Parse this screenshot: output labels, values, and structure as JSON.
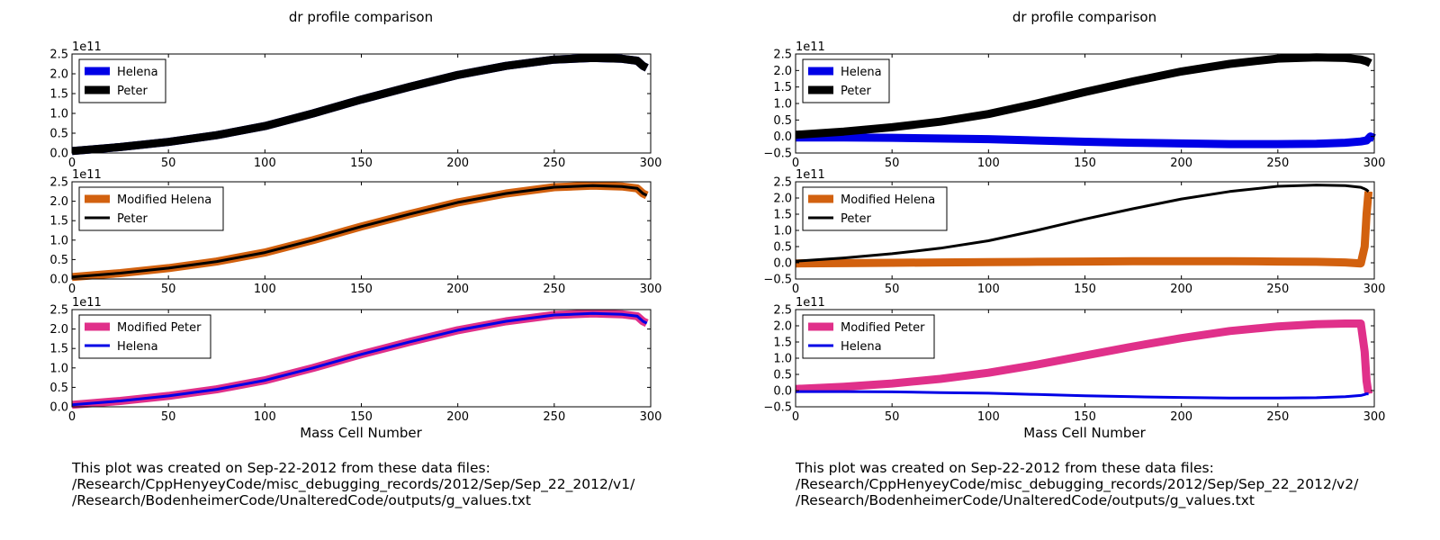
{
  "figures": [
    {
      "title": "dr profile comparison",
      "xlabel": "Mass Cell Number",
      "note": [
        "This plot was created on Sep-22-2012 from these data files:",
        "/Research/CppHenyeyCode/misc_debugging_records/2012/Sep/Sep_22_2012/v1/",
        "/Research/BodenheimerCode/UnalteredCode/outputs/g_values.txt"
      ]
    },
    {
      "title": "dr profile comparison",
      "xlabel": "Mass Cell Number",
      "note": [
        "This plot was created on Sep-22-2012 from these data files:",
        "/Research/CppHenyeyCode/misc_debugging_records/2012/Sep/Sep_22_2012/v2/",
        "/Research/BodenheimerCode/UnalteredCode/outputs/g_values.txt"
      ]
    }
  ],
  "colors": {
    "blue": "#0000e6",
    "black": "#000000",
    "orange": "#d2610f",
    "pink": "#e0308a"
  },
  "chart_data": [
    {
      "type": "line",
      "title": "dr profile comparison",
      "xlabel": "",
      "ylabel": "",
      "scale_label": "1e11",
      "xlim": [
        0,
        300
      ],
      "ylim": [
        0,
        2.5
      ],
      "xticks": [
        "0",
        "50",
        "100",
        "150",
        "200",
        "250",
        "300"
      ],
      "yticks": [
        "0.0",
        "0.5",
        "1.0",
        "1.5",
        "2.0",
        "2.5"
      ],
      "legend": "top-left",
      "x": [
        0,
        25,
        50,
        75,
        100,
        125,
        150,
        175,
        200,
        225,
        250,
        270,
        285,
        293,
        296,
        298
      ],
      "series": [
        {
          "name": "Helena",
          "style": "thick",
          "color": "#0000e6",
          "values": [
            0.05,
            0.15,
            0.28,
            0.45,
            0.68,
            1.0,
            1.35,
            1.67,
            1.97,
            2.2,
            2.36,
            2.4,
            2.38,
            2.33,
            2.2,
            2.15
          ]
        },
        {
          "name": "Peter",
          "style": "thick",
          "color": "#000000",
          "values": [
            0.05,
            0.15,
            0.28,
            0.45,
            0.68,
            1.0,
            1.35,
            1.67,
            1.97,
            2.2,
            2.36,
            2.4,
            2.38,
            2.33,
            2.2,
            2.15
          ]
        }
      ]
    },
    {
      "type": "line",
      "xlabel": "",
      "ylabel": "",
      "scale_label": "1e11",
      "xlim": [
        0,
        300
      ],
      "ylim": [
        0,
        2.5
      ],
      "xticks": [
        "0",
        "50",
        "100",
        "150",
        "200",
        "250",
        "300"
      ],
      "yticks": [
        "0.0",
        "0.5",
        "1.0",
        "1.5",
        "2.0",
        "2.5"
      ],
      "legend": "top-left",
      "x": [
        0,
        25,
        50,
        75,
        100,
        125,
        150,
        175,
        200,
        225,
        250,
        270,
        285,
        293,
        296,
        298
      ],
      "series": [
        {
          "name": "Modified Helena",
          "style": "thick",
          "color": "#d2610f",
          "values": [
            0.05,
            0.15,
            0.28,
            0.45,
            0.68,
            1.0,
            1.35,
            1.67,
            1.97,
            2.2,
            2.36,
            2.4,
            2.38,
            2.33,
            2.2,
            2.15
          ]
        },
        {
          "name": "Peter",
          "style": "thin",
          "color": "#000000",
          "values": [
            0.05,
            0.15,
            0.28,
            0.45,
            0.68,
            1.0,
            1.35,
            1.67,
            1.97,
            2.2,
            2.36,
            2.4,
            2.38,
            2.33,
            2.2,
            2.15
          ]
        }
      ]
    },
    {
      "type": "line",
      "xlabel": "Mass Cell Number",
      "ylabel": "",
      "scale_label": "1e11",
      "xlim": [
        0,
        300
      ],
      "ylim": [
        0,
        2.5
      ],
      "xticks": [
        "0",
        "50",
        "100",
        "150",
        "200",
        "250",
        "300"
      ],
      "yticks": [
        "0.0",
        "0.5",
        "1.0",
        "1.5",
        "2.0",
        "2.5"
      ],
      "legend": "top-left",
      "x": [
        0,
        25,
        50,
        75,
        100,
        125,
        150,
        175,
        200,
        225,
        250,
        270,
        285,
        293,
        296,
        298
      ],
      "series": [
        {
          "name": "Modified Peter",
          "style": "thick",
          "color": "#e0308a",
          "values": [
            0.05,
            0.15,
            0.28,
            0.45,
            0.68,
            1.0,
            1.35,
            1.67,
            1.97,
            2.2,
            2.36,
            2.4,
            2.38,
            2.33,
            2.2,
            2.15
          ]
        },
        {
          "name": "Helena",
          "style": "thin",
          "color": "#0000e6",
          "values": [
            0.05,
            0.15,
            0.28,
            0.45,
            0.68,
            1.0,
            1.35,
            1.67,
            1.97,
            2.2,
            2.36,
            2.4,
            2.38,
            2.33,
            2.2,
            2.15
          ]
        }
      ]
    },
    {
      "type": "line",
      "title": "dr profile comparison",
      "xlabel": "",
      "ylabel": "",
      "scale_label": "1e11",
      "xlim": [
        0,
        300
      ],
      "ylim": [
        -0.5,
        2.5
      ],
      "xticks": [
        "0",
        "50",
        "100",
        "150",
        "200",
        "250",
        "300"
      ],
      "yticks": [
        "−0.5",
        "0.0",
        "0.5",
        "1.0",
        "1.5",
        "2.0",
        "2.5"
      ],
      "legend": "top-left",
      "x": [
        0,
        25,
        50,
        75,
        100,
        125,
        150,
        175,
        200,
        225,
        250,
        270,
        285,
        293,
        296,
        298,
        300
      ],
      "series": [
        {
          "name": "Helena",
          "style": "thick",
          "color": "#0000e6",
          "values": [
            -0.03,
            -0.03,
            -0.04,
            -0.06,
            -0.08,
            -0.12,
            -0.16,
            -0.19,
            -0.21,
            -0.23,
            -0.23,
            -0.22,
            -0.19,
            -0.15,
            -0.12,
            0.0,
            -0.05
          ]
        },
        {
          "name": "Peter",
          "style": "thick",
          "color": "#000000",
          "values": [
            0.05,
            0.15,
            0.28,
            0.45,
            0.68,
            1.0,
            1.35,
            1.67,
            1.97,
            2.2,
            2.36,
            2.4,
            2.38,
            2.33,
            2.28,
            2.22,
            null
          ]
        }
      ]
    },
    {
      "type": "line",
      "xlabel": "",
      "ylabel": "",
      "scale_label": "1e11",
      "xlim": [
        0,
        300
      ],
      "ylim": [
        -0.5,
        2.5
      ],
      "xticks": [
        "0",
        "50",
        "100",
        "150",
        "200",
        "250",
        "300"
      ],
      "yticks": [
        "−0.5",
        "0.0",
        "0.5",
        "1.0",
        "1.5",
        "2.0",
        "2.5"
      ],
      "legend": "top-left",
      "x": [
        0,
        25,
        50,
        75,
        100,
        125,
        150,
        175,
        200,
        225,
        250,
        270,
        285,
        293,
        295,
        296,
        297
      ],
      "series": [
        {
          "name": "Modified Helena",
          "style": "thick",
          "color": "#d2610f",
          "values": [
            -0.02,
            -0.01,
            0.0,
            0.01,
            0.02,
            0.03,
            0.04,
            0.05,
            0.05,
            0.05,
            0.04,
            0.03,
            0.01,
            -0.02,
            0.5,
            1.5,
            2.2
          ]
        },
        {
          "name": "Peter",
          "style": "thin",
          "color": "#000000",
          "values": [
            0.05,
            0.15,
            0.28,
            0.45,
            0.68,
            1.0,
            1.35,
            1.67,
            1.97,
            2.2,
            2.36,
            2.4,
            2.38,
            2.33,
            2.28,
            2.25,
            2.2
          ]
        }
      ]
    },
    {
      "type": "line",
      "xlabel": "Mass Cell Number",
      "ylabel": "",
      "scale_label": "1e11",
      "xlim": [
        0,
        300
      ],
      "ylim": [
        -0.5,
        2.5
      ],
      "xticks": [
        "0",
        "50",
        "100",
        "150",
        "200",
        "250",
        "300"
      ],
      "yticks": [
        "−0.5",
        "0.0",
        "0.5",
        "1.0",
        "1.5",
        "2.0",
        "2.5"
      ],
      "legend": "top-left",
      "x": [
        0,
        25,
        50,
        75,
        100,
        125,
        150,
        175,
        200,
        225,
        250,
        270,
        285,
        293,
        295,
        296,
        297
      ],
      "series": [
        {
          "name": "Modified Peter",
          "style": "thick",
          "color": "#e0308a",
          "values": [
            0.05,
            0.12,
            0.22,
            0.36,
            0.55,
            0.8,
            1.08,
            1.36,
            1.62,
            1.84,
            1.98,
            2.05,
            2.07,
            2.07,
            1.2,
            0.3,
            -0.1
          ]
        },
        {
          "name": "Helena",
          "style": "thin",
          "color": "#0000e6",
          "values": [
            -0.03,
            -0.03,
            -0.04,
            -0.06,
            -0.08,
            -0.12,
            -0.16,
            -0.19,
            -0.21,
            -0.23,
            -0.23,
            -0.22,
            -0.19,
            -0.15,
            -0.12,
            -0.1,
            -0.1
          ]
        }
      ]
    }
  ]
}
